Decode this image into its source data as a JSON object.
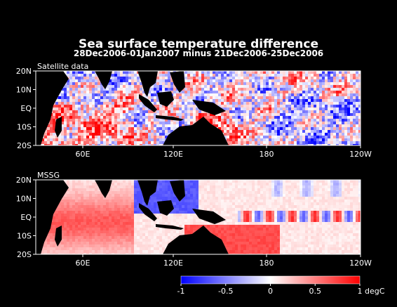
{
  "title": "Sea surface temperature difference",
  "subtitle": "28Dec2006-01Jan2007 minus 21Dec2006-25Dec2006",
  "panels": [
    {
      "label": "Satellite data",
      "kind": "noisy"
    },
    {
      "label": "MSSG",
      "kind": "smooth"
    }
  ],
  "lat_ticks": [
    "20N",
    "10N",
    "EQ",
    "10S",
    "20S"
  ],
  "lon_ticks": [
    "60E",
    "120E",
    "180",
    "120W"
  ],
  "colorbar": {
    "ticks": [
      "-1",
      "-0.5",
      "0",
      "0.5",
      "1"
    ],
    "unit": "degC",
    "min": -1,
    "max": 1,
    "colors": [
      "#0000ff",
      "#ffffff",
      "#ff0000"
    ]
  },
  "colors": {
    "background": "#000000",
    "land": "#000000",
    "text": "#ffffff"
  }
}
